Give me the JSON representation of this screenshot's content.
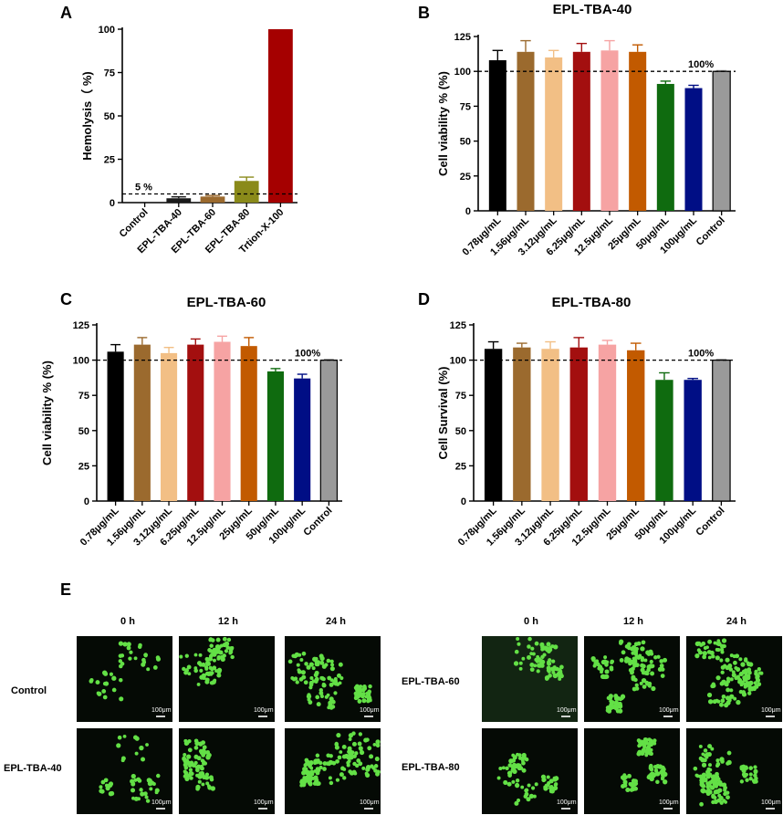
{
  "panel_labels": [
    "A",
    "B",
    "C",
    "D",
    "E"
  ],
  "chart_data": [
    {
      "id": "A",
      "type": "bar",
      "title": "",
      "ylabel": "Hemolysis（ %)",
      "xlabel": "",
      "ylim": [
        0,
        100
      ],
      "yticks": [
        0,
        25,
        50,
        75,
        100
      ],
      "categories": [
        "Control",
        "EPL-TBA-40",
        "EPL-TBA-60",
        "EPL-TBA-80",
        "Trtion-X-100"
      ],
      "values": [
        0,
        2.5,
        3.5,
        12.5,
        100
      ],
      "errors": [
        0,
        0.8,
        0.6,
        2.2,
        0
      ],
      "colors": [
        "#000000",
        "#1a1a1a",
        "#9b6a2e",
        "#8a8a1a",
        "#a50000"
      ],
      "reference_line": {
        "value": 5,
        "label": "5 %"
      }
    },
    {
      "id": "B",
      "type": "bar",
      "title": "EPL-TBA-40",
      "ylabel": "Cell viability % (%)",
      "xlabel": "",
      "ylim": [
        0,
        125
      ],
      "yticks": [
        0,
        25,
        50,
        75,
        100,
        125
      ],
      "categories": [
        "0.78μg/mL",
        "1.56μg/mL",
        "3.12μg/mL",
        "6.25μg/mL",
        "12.5μg/mL",
        "25μg/mL",
        "50μg/mL",
        "100μg/mL",
        "Control"
      ],
      "values": [
        108,
        114,
        110,
        114,
        115,
        114,
        91,
        88,
        100
      ],
      "errors": [
        7,
        8,
        5,
        6,
        7,
        5,
        2,
        2,
        0.5
      ],
      "colors": [
        "#000000",
        "#9b6a2e",
        "#f2bf85",
        "#a30f0f",
        "#f6a3a3",
        "#c25a00",
        "#0f6b0f",
        "#000e85",
        "#9a9a9a"
      ],
      "reference_line": {
        "value": 100,
        "label": "100%"
      }
    },
    {
      "id": "C",
      "type": "bar",
      "title": "EPL-TBA-60",
      "ylabel": "Cell viability % (%)",
      "xlabel": "",
      "ylim": [
        0,
        125
      ],
      "yticks": [
        0,
        25,
        50,
        75,
        100,
        125
      ],
      "categories": [
        "0.78μg/mL",
        "1.56μg/mL",
        "3.12μg/mL",
        "6.25μg/mL",
        "12.5μg/mL",
        "25μg/mL",
        "50μg/mL",
        "100μg/mL",
        "Control"
      ],
      "values": [
        106,
        111,
        105,
        111,
        113,
        110,
        92,
        87,
        100
      ],
      "errors": [
        5,
        5,
        4,
        4,
        4,
        6,
        2,
        3,
        0.5
      ],
      "colors": [
        "#000000",
        "#9b6a2e",
        "#f2bf85",
        "#a30f0f",
        "#f6a3a3",
        "#c25a00",
        "#0f6b0f",
        "#000e85",
        "#9a9a9a"
      ],
      "reference_line": {
        "value": 100,
        "label": "100%"
      }
    },
    {
      "id": "D",
      "type": "bar",
      "title": "EPL-TBA-80",
      "ylabel": "Cell Survival (%)",
      "xlabel": "",
      "ylim": [
        0,
        125
      ],
      "yticks": [
        0,
        25,
        50,
        75,
        100,
        125
      ],
      "categories": [
        "0.78μg/mL",
        "1.56μg/mL",
        "3.12μg/mL",
        "6.25μg/mL",
        "12.5μg/mL",
        "25μg/mL",
        "50μg/mL",
        "100μg/mL",
        "Control"
      ],
      "values": [
        108,
        109,
        108,
        109,
        111,
        107,
        86,
        86,
        100
      ],
      "errors": [
        5,
        3,
        5,
        7,
        3,
        5,
        5,
        1,
        0.5
      ],
      "colors": [
        "#000000",
        "#9b6a2e",
        "#f2bf85",
        "#a30f0f",
        "#f6a3a3",
        "#c25a00",
        "#0f6b0f",
        "#000e85",
        "#9a9a9a"
      ],
      "reference_line": {
        "value": 100,
        "label": "100%"
      }
    }
  ],
  "micrographs": {
    "time_labels": [
      "0 h",
      "12 h",
      "24 h"
    ],
    "groups": [
      {
        "label": "Control",
        "scale_bar": "100μm"
      },
      {
        "label": "EPL-TBA-40",
        "scale_bar": "100μm"
      },
      {
        "label": "EPL-TBA-60",
        "scale_bar": "100μm"
      },
      {
        "label": "EPL-TBA-80",
        "scale_bar": "100μm"
      }
    ],
    "cell_color": "#63e046",
    "background_color": "#050a05"
  }
}
